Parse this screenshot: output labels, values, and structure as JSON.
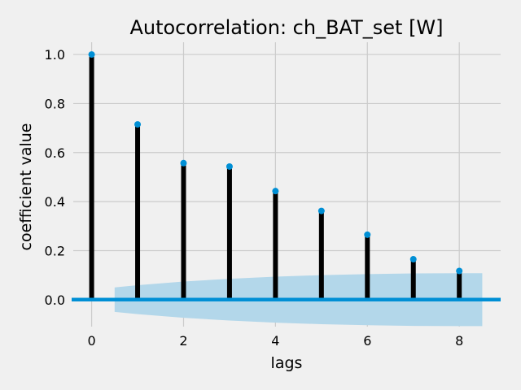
{
  "chart_data": {
    "type": "stem",
    "title": "Autocorrelation: ch_BAT_set [W]",
    "xlabel": "lags",
    "ylabel": "coefficient value",
    "x": [
      0,
      1,
      2,
      3,
      4,
      5,
      6,
      7,
      8
    ],
    "values": [
      1.0,
      0.715,
      0.557,
      0.543,
      0.443,
      0.362,
      0.265,
      0.165,
      0.117
    ],
    "confidence_band": {
      "x": [
        0.5,
        1,
        2,
        3,
        4,
        5,
        6,
        7,
        8,
        8.5
      ],
      "upper": [
        0.05,
        0.059,
        0.074,
        0.085,
        0.094,
        0.1,
        0.104,
        0.107,
        0.108,
        0.108
      ],
      "lower": [
        -0.05,
        -0.059,
        -0.074,
        -0.085,
        -0.094,
        -0.1,
        -0.104,
        -0.107,
        -0.108,
        -0.108
      ]
    },
    "xlim": [
      -0.4,
      8.9
    ],
    "ylim": [
      -0.11,
      1.05
    ],
    "xticks": [
      "0",
      "2",
      "4",
      "6",
      "8"
    ],
    "yticks": [
      "0.0",
      "0.2",
      "0.4",
      "0.6",
      "0.8",
      "1.0"
    ],
    "grid": true,
    "colors": {
      "background": "#f0f0f0",
      "grid": "#cbcbcb",
      "stem": "#000000",
      "marker": "#008fd5",
      "zero_line": "#008fd5",
      "band": "#b3d7ea"
    }
  }
}
